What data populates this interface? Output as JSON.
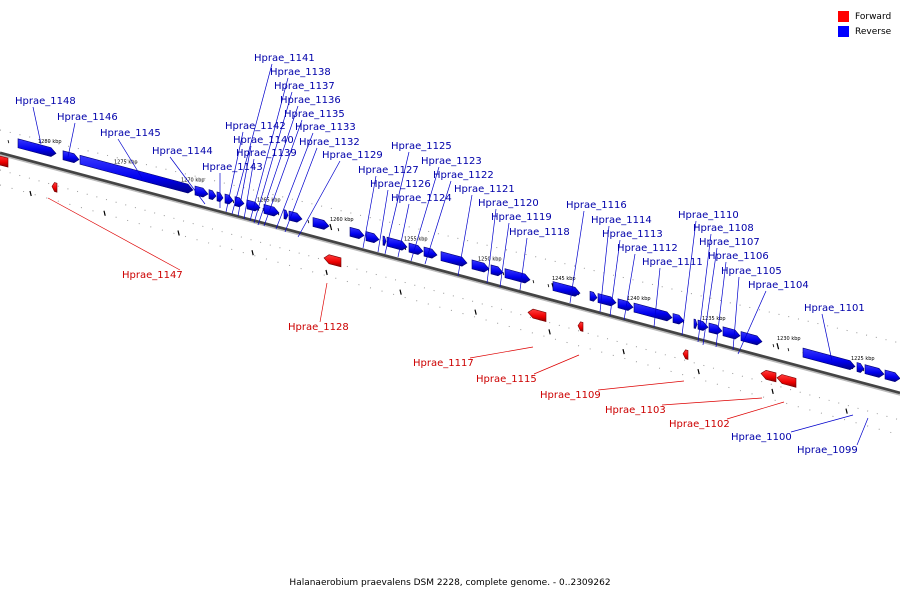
{
  "legend": [
    {
      "label": "Forward",
      "color": "#ff0000"
    },
    {
      "label": "Reverse",
      "color": "#0000ff"
    }
  ],
  "caption": "Halanaerobium praevalens DSM 2228, complete genome. - 0..2309262",
  "colors": {
    "forward": "#ff0000",
    "reverse": "#0000ff",
    "backbone": "#777777"
  },
  "tick_labels": [
    "1280 kbp",
    "1275 kbp",
    "1270 kbp",
    "1265 kbp",
    "1260 kbp",
    "1255 kbp",
    "1250 kbp",
    "1245 kbp",
    "1240 kbp",
    "1235 kbp",
    "1230 kbp",
    "1225 kbp"
  ],
  "genes_reverse": [
    "Hprae_1148",
    "Hprae_1146",
    "Hprae_1145",
    "Hprae_1144",
    "Hprae_1143",
    "Hprae_1142",
    "Hprae_1141",
    "Hprae_1140",
    "Hprae_1139",
    "Hprae_1138",
    "Hprae_1137",
    "Hprae_1136",
    "Hprae_1135",
    "Hprae_1133",
    "Hprae_1132",
    "Hprae_1129",
    "Hprae_1127",
    "Hprae_1126",
    "Hprae_1125",
    "Hprae_1124",
    "Hprae_1123",
    "Hprae_1122",
    "Hprae_1121",
    "Hprae_1120",
    "Hprae_1119",
    "Hprae_1118",
    "Hprae_1116",
    "Hprae_1114",
    "Hprae_1113",
    "Hprae_1112",
    "Hprae_1111",
    "Hprae_1110",
    "Hprae_1108",
    "Hprae_1107",
    "Hprae_1106",
    "Hprae_1105",
    "Hprae_1104",
    "Hprae_1101",
    "Hprae_1100",
    "Hprae_1099"
  ],
  "genes_forward": [
    "Hprae_1147",
    "Hprae_1128",
    "Hprae_1117",
    "Hprae_1115",
    "Hprae_1109",
    "Hprae_1103",
    "Hprae_1102"
  ]
}
